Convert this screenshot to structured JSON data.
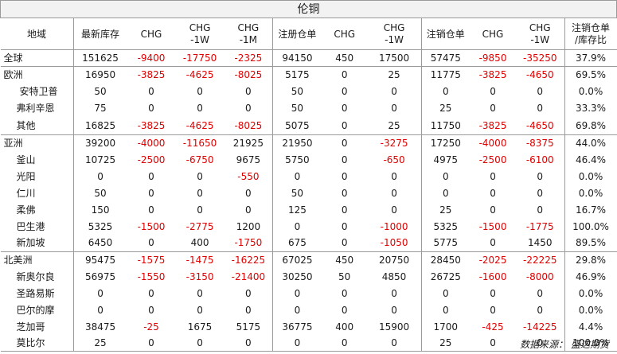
{
  "title": "伦铜",
  "columns": {
    "region": "地域",
    "stock": "最新库存",
    "chg": "CHG",
    "chg_1w_a": "CHG",
    "chg_1w_b": "-1W",
    "chg_1m_a": "CHG",
    "chg_1m_b": "-1M",
    "reg": "注册仓单",
    "reg_chg": "CHG",
    "reg_chg_1w_a": "CHG",
    "reg_chg_1w_b": "-1W",
    "cancel": "注销仓单",
    "cancel_chg": "CHG",
    "cancel_chg_1w_a": "CHG",
    "cancel_chg_1w_b": "-1W",
    "ratio_a": "注销仓单",
    "ratio_b": "/库存比"
  },
  "rows": [
    {
      "name": "全球",
      "level": 0,
      "v": [
        "151625",
        "-9400",
        "-17750",
        "-2325",
        "94150",
        "450",
        "17500",
        "57475",
        "-9850",
        "-35250",
        "37.9%"
      ]
    },
    {
      "name": "欧洲",
      "level": 0,
      "v": [
        "16950",
        "-3825",
        "-4625",
        "-8025",
        "5175",
        "0",
        "25",
        "11775",
        "-3825",
        "-4650",
        "69.5%"
      ]
    },
    {
      "name": "安特卫普",
      "level": 2,
      "v": [
        "50",
        "0",
        "0",
        "0",
        "50",
        "0",
        "0",
        "0",
        "0",
        "0",
        "0.0%"
      ]
    },
    {
      "name": "弗利辛恩",
      "level": 1,
      "v": [
        "75",
        "0",
        "0",
        "0",
        "50",
        "0",
        "0",
        "25",
        "0",
        "0",
        "33.3%"
      ]
    },
    {
      "name": "其他",
      "level": 1,
      "v": [
        "16825",
        "-3825",
        "-4625",
        "-8025",
        "5075",
        "0",
        "25",
        "11750",
        "-3825",
        "-4650",
        "69.8%"
      ]
    },
    {
      "name": "亚洲",
      "level": 0,
      "v": [
        "39200",
        "-4000",
        "-11650",
        "21925",
        "21950",
        "0",
        "-3275",
        "17250",
        "-4000",
        "-8375",
        "44.0%"
      ]
    },
    {
      "name": "釜山",
      "level": 1,
      "v": [
        "10725",
        "-2500",
        "-6750",
        "9675",
        "5750",
        "0",
        "-650",
        "4975",
        "-2500",
        "-6100",
        "46.4%"
      ]
    },
    {
      "name": "光阳",
      "level": 1,
      "v": [
        "0",
        "0",
        "0",
        "-550",
        "0",
        "0",
        "0",
        "0",
        "0",
        "0",
        "0.0%"
      ]
    },
    {
      "name": "仁川",
      "level": 1,
      "v": [
        "50",
        "0",
        "0",
        "0",
        "50",
        "0",
        "0",
        "0",
        "0",
        "0",
        "0.0%"
      ]
    },
    {
      "name": "柔佛",
      "level": 1,
      "v": [
        "150",
        "0",
        "0",
        "0",
        "125",
        "0",
        "0",
        "25",
        "0",
        "0",
        "16.7%"
      ]
    },
    {
      "name": "巴生港",
      "level": 1,
      "v": [
        "5325",
        "-1500",
        "-2775",
        "1200",
        "0",
        "0",
        "-1000",
        "5325",
        "-1500",
        "-1775",
        "100.0%"
      ]
    },
    {
      "name": "新加坡",
      "level": 1,
      "v": [
        "6450",
        "0",
        "400",
        "-1750",
        "675",
        "0",
        "-1050",
        "5775",
        "0",
        "1450",
        "89.5%"
      ]
    },
    {
      "name": "北美洲",
      "level": 0,
      "v": [
        "95475",
        "-1575",
        "-1475",
        "-16225",
        "67025",
        "450",
        "20750",
        "28450",
        "-2025",
        "-22225",
        "29.8%"
      ]
    },
    {
      "name": "新奥尔良",
      "level": 1,
      "v": [
        "56975",
        "-1550",
        "-3150",
        "-21400",
        "30250",
        "50",
        "4850",
        "26725",
        "-1600",
        "-8000",
        "46.9%"
      ]
    },
    {
      "name": "圣路易斯",
      "level": 1,
      "v": [
        "0",
        "0",
        "0",
        "0",
        "0",
        "0",
        "0",
        "0",
        "0",
        "0",
        "0.0%"
      ]
    },
    {
      "name": "巴尔的摩",
      "level": 1,
      "v": [
        "0",
        "0",
        "0",
        "0",
        "0",
        "0",
        "0",
        "0",
        "0",
        "0",
        "0.0%"
      ]
    },
    {
      "name": "芝加哥",
      "level": 1,
      "v": [
        "38475",
        "-25",
        "1675",
        "5175",
        "36775",
        "400",
        "15900",
        "1700",
        "-425",
        "-14225",
        "4.4%"
      ]
    },
    {
      "name": "莫比尔",
      "level": 1,
      "v": [
        "25",
        "0",
        "0",
        "0",
        "0",
        "0",
        "0",
        "25",
        "0",
        "0",
        "100.0%"
      ]
    }
  ],
  "source": "数据来源：  盛达期货",
  "colors": {
    "negative": "#e00000",
    "border": "#9a9a9a",
    "title_bg": "#f2f2f2"
  }
}
